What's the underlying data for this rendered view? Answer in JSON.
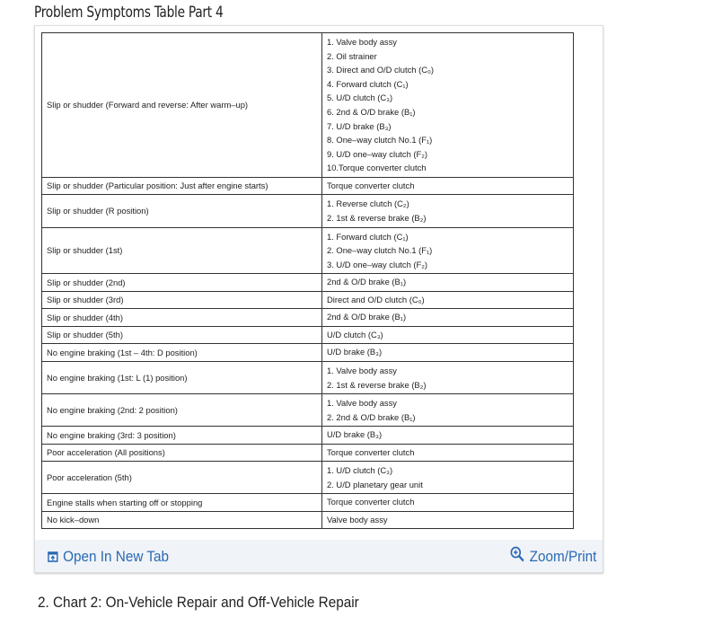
{
  "page_title": "Problem Symptoms Table Part 4",
  "table": {
    "rows": [
      {
        "symptom": "Slip or shudder (Forward and reverse: After warm–up)",
        "causes": [
          "1.  Valve body assy",
          "2.  Oil strainer",
          "3.  Direct and O/D clutch (C₀)",
          "4.  Forward clutch (C₁)",
          "5.  U/D clutch (C₃)",
          "6.  2nd & O/D brake (B₁)",
          "7.  U/D brake (B₃)",
          "8.  One–way clutch No.1 (F₁)",
          "9.  U/D one–way clutch (F₂)",
          "10.Torque converter clutch"
        ]
      },
      {
        "symptom": "Slip or shudder (Particular position: Just after engine starts)",
        "causes": [
          "Torque converter clutch"
        ]
      },
      {
        "symptom": "Slip or shudder (R position)",
        "causes": [
          "1.  Reverse clutch (C₂)",
          "2.  1st & reverse brake (B₂)"
        ]
      },
      {
        "symptom": "Slip or shudder (1st)",
        "causes": [
          "1.  Forward clutch (C₁)",
          "2.  One–way clutch No.1 (F₁)",
          "3.  U/D one–way clutch (F₂)"
        ]
      },
      {
        "symptom": "Slip or shudder (2nd)",
        "causes": [
          "2nd & O/D brake (B₁)"
        ]
      },
      {
        "symptom": "Slip or shudder (3rd)",
        "causes": [
          "Direct and O/D clutch (C₀)"
        ]
      },
      {
        "symptom": "Slip or shudder (4th)",
        "causes": [
          "2nd & O/D brake (B₁)"
        ]
      },
      {
        "symptom": "Slip or shudder (5th)",
        "causes": [
          "U/D clutch (C₃)"
        ]
      },
      {
        "symptom": "No engine braking (1st – 4th: D position)",
        "causes": [
          "U/D brake (B₃)"
        ]
      },
      {
        "symptom": "No engine braking (1st: L (1) position)",
        "causes": [
          "1.  Valve body assy",
          "2.  1st & reverse brake (B₂)"
        ]
      },
      {
        "symptom": "No engine braking (2nd: 2 position)",
        "causes": [
          "1.  Valve body assy",
          "2.  2nd & O/D brake (B₁)"
        ]
      },
      {
        "symptom": "No engine braking (3rd: 3 position)",
        "causes": [
          "U/D brake (B₃)"
        ]
      },
      {
        "symptom": "Poor acceleration (All positions)",
        "causes": [
          "Torque converter clutch"
        ]
      },
      {
        "symptom": "Poor acceleration (5th)",
        "causes": [
          "1.  U/D clutch (C₃)",
          "2.  U/D planetary gear unit"
        ]
      },
      {
        "symptom": "Engine stalls when starting off or stopping",
        "causes": [
          "Torque converter clutch"
        ]
      },
      {
        "symptom": "No kick–down",
        "causes": [
          "Valve body assy"
        ]
      }
    ]
  },
  "footer": {
    "open_label": "Open In New Tab",
    "open_icon": "open-new-tab-icon",
    "zoom_label": "Zoom/Print",
    "zoom_icon": "magnifier-plus-icon",
    "link_color": "#2a6ab4"
  },
  "next_heading": "2. Chart 2: On-Vehicle Repair and Off-Vehicle Repair"
}
